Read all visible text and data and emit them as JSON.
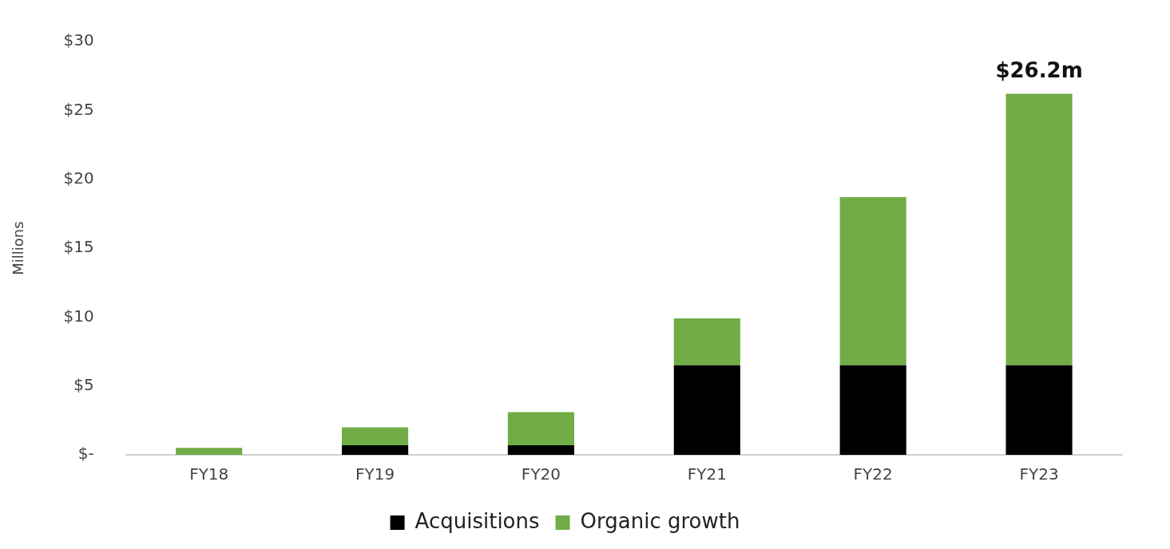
{
  "chart_data": {
    "type": "bar",
    "stacked": true,
    "ylabel": "Millions",
    "categories": [
      "FY18",
      "FY19",
      "FY20",
      "FY21",
      "FY22",
      "FY23"
    ],
    "series": [
      {
        "name": "Acquisitions",
        "color": "#000000",
        "values": [
          0,
          0.7,
          0.7,
          6.5,
          6.5,
          6.5
        ]
      },
      {
        "name": "Organic growth",
        "color": "#70ad47",
        "values": [
          0.5,
          1.3,
          2.4,
          3.4,
          12.2,
          19.7
        ]
      }
    ],
    "ylim": [
      0,
      30
    ],
    "yticks": [
      {
        "value": 0,
        "label": "$-"
      },
      {
        "value": 5,
        "label": "$5"
      },
      {
        "value": 10,
        "label": "$10"
      },
      {
        "value": 15,
        "label": "$15"
      },
      {
        "value": 20,
        "label": "$20"
      },
      {
        "value": 25,
        "label": "$25"
      },
      {
        "value": 30,
        "label": "$30"
      }
    ],
    "grid": false,
    "legend": "bottom",
    "annotations": [
      {
        "text": "$26.2m",
        "x": "FY23",
        "y": 26.2
      }
    ]
  }
}
